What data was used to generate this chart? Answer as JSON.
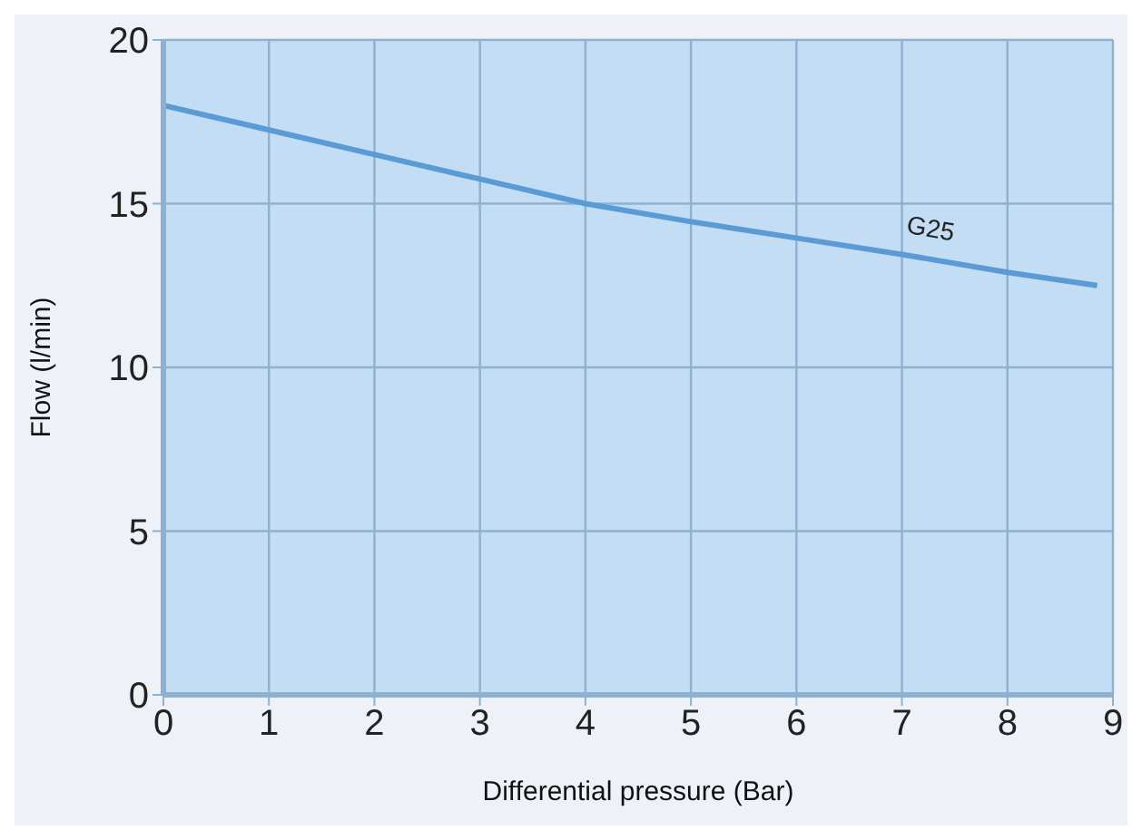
{
  "chart_data": {
    "type": "line",
    "xlabel": "Differential pressure (Bar)",
    "ylabel": "Flow (l/min)",
    "x": [
      0,
      1,
      2,
      3,
      4,
      5,
      6,
      7,
      8,
      8.85
    ],
    "series": [
      {
        "name": "G25",
        "color": "#5b9bd5",
        "values": [
          18,
          17.25,
          16.5,
          15.75,
          15,
          14.45,
          13.95,
          13.45,
          12.9,
          12.5
        ]
      }
    ],
    "xlim": [
      0,
      9
    ],
    "xticks": [
      0,
      1,
      2,
      3,
      4,
      5,
      6,
      7,
      8,
      9
    ],
    "ylim": [
      0,
      20
    ],
    "yticks": [
      0,
      5,
      10,
      15,
      20
    ],
    "grid": true,
    "marker": "none",
    "line_style": "solid"
  }
}
